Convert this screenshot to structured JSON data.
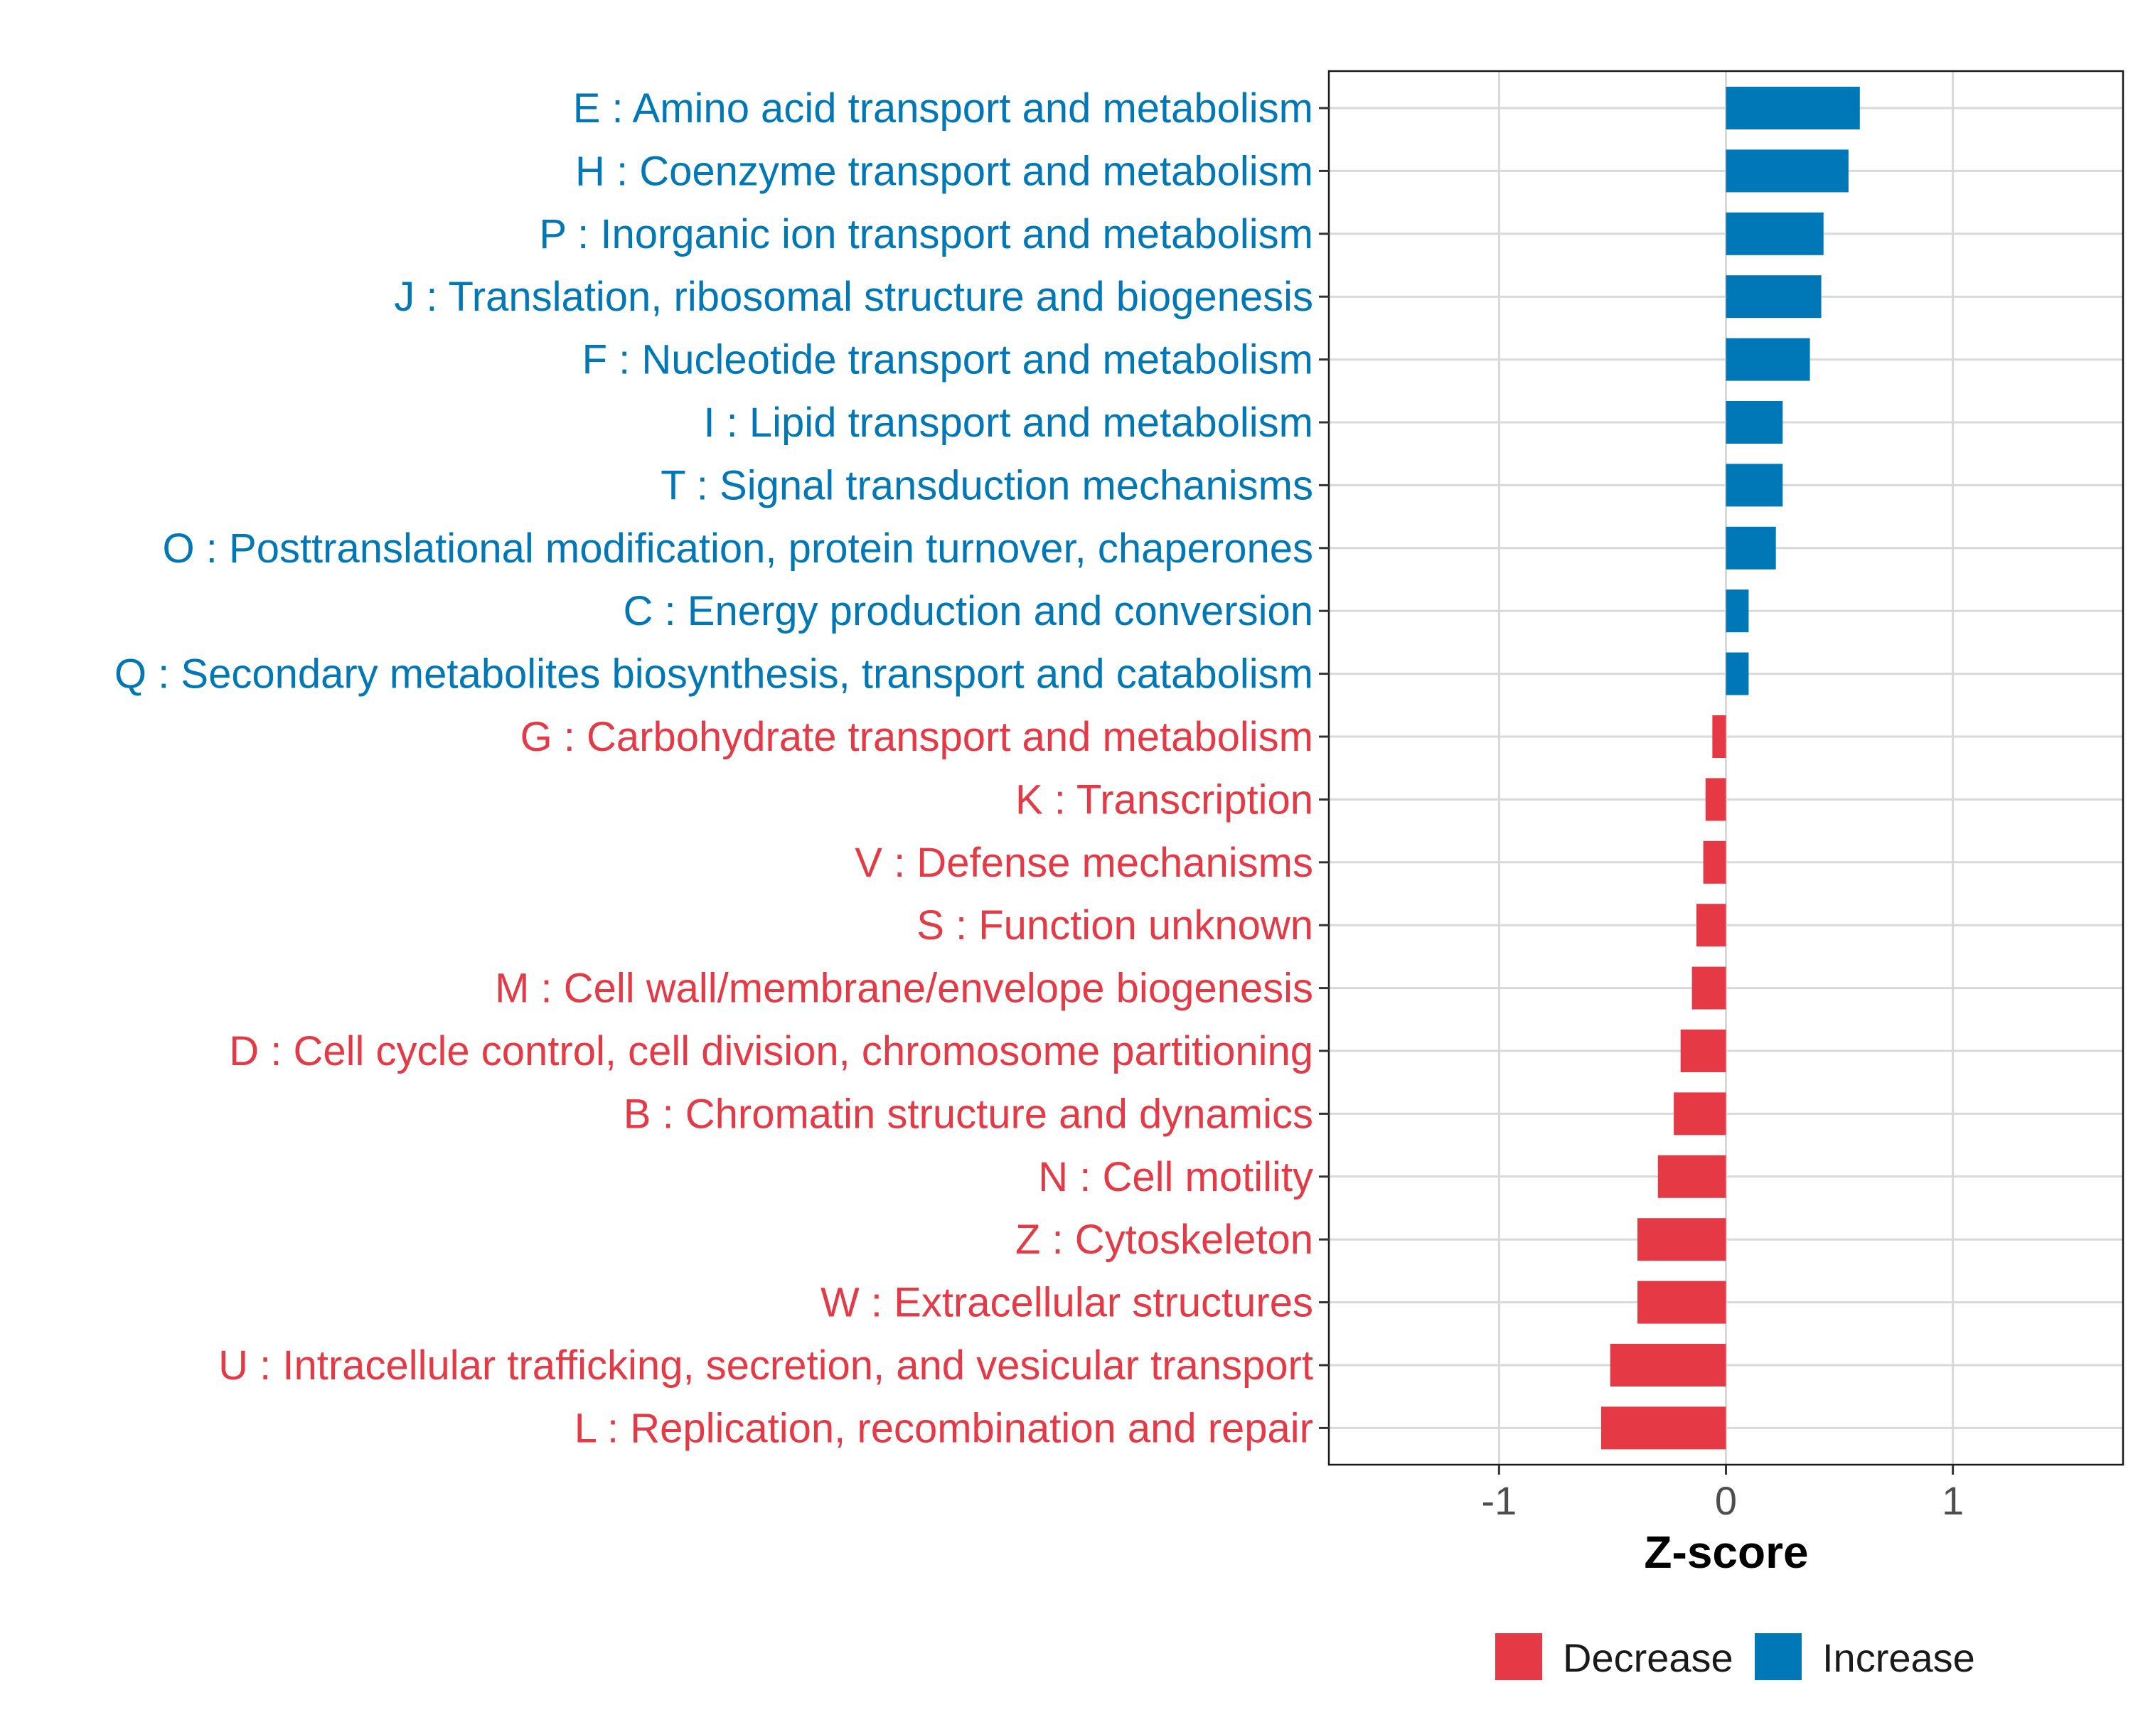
{
  "chart_data": {
    "type": "bar",
    "orientation": "horizontal",
    "title": "",
    "xlabel": "Z-score",
    "ylabel": "",
    "xlim": [
      -1.75,
      1.75
    ],
    "xticks": [
      -1,
      0,
      1
    ],
    "grid": true,
    "legend_position": "bottom",
    "categories": [
      "E : Amino acid transport and metabolism",
      "H : Coenzyme transport and metabolism",
      "P : Inorganic ion transport and metabolism",
      "J : Translation, ribosomal structure and biogenesis",
      "F : Nucleotide transport and metabolism",
      "I : Lipid transport and metabolism",
      "T : Signal transduction mechanisms",
      "O : Posttranslational modification, protein turnover, chaperones",
      "C : Energy production and conversion",
      "Q : Secondary metabolites biosynthesis, transport and catabolism",
      "G : Carbohydrate transport and metabolism",
      "K : Transcription",
      "V : Defense mechanisms",
      "S : Function unknown",
      "M : Cell wall/membrane/envelope biogenesis",
      "D : Cell cycle control, cell division, chromosome partitioning",
      "B : Chromatin structure and dynamics",
      "N : Cell motility",
      "Z : Cytoskeleton",
      "W : Extracellular structures",
      "U : Intracellular trafficking, secretion, and vesicular transport",
      "L : Replication, recombination and repair"
    ],
    "values": [
      0.59,
      0.54,
      0.43,
      0.42,
      0.37,
      0.25,
      0.25,
      0.22,
      0.1,
      0.1,
      -0.06,
      -0.09,
      -0.1,
      -0.13,
      -0.15,
      -0.2,
      -0.23,
      -0.3,
      -0.39,
      -0.39,
      -0.51,
      -0.55
    ],
    "groups": [
      "Increase",
      "Increase",
      "Increase",
      "Increase",
      "Increase",
      "Increase",
      "Increase",
      "Increase",
      "Increase",
      "Increase",
      "Decrease",
      "Decrease",
      "Decrease",
      "Decrease",
      "Decrease",
      "Decrease",
      "Decrease",
      "Decrease",
      "Decrease",
      "Decrease",
      "Decrease",
      "Decrease"
    ],
    "legend": [
      {
        "name": "Decrease",
        "color": "#E63946"
      },
      {
        "name": "Increase",
        "color": "#0077B6"
      }
    ]
  }
}
